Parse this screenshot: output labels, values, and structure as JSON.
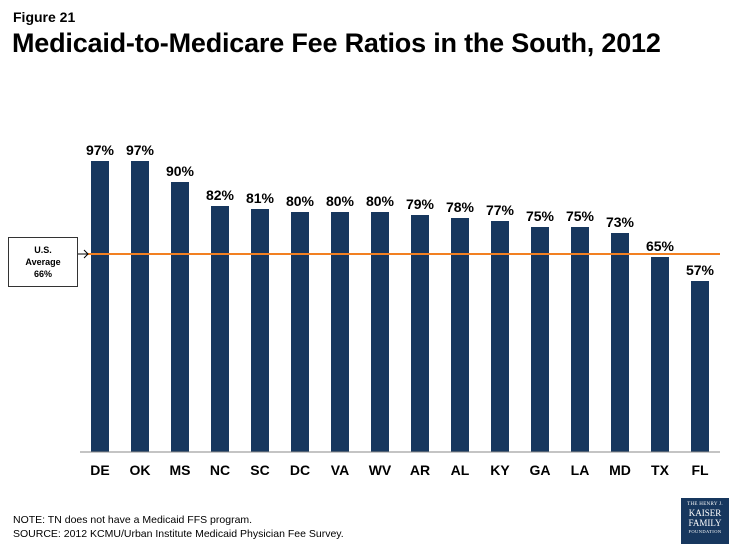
{
  "figure_label": "Figure 21",
  "title": "Medicaid-to-Medicare Fee Ratios in the South, 2012",
  "average_box": {
    "line1": "U.S.",
    "line2": "Average",
    "line3": "66%"
  },
  "notes": {
    "note": "NOTE: TN does not have a Medicaid FFS program.",
    "source": "SOURCE: 2012 KCMU/Urban Institute Medicaid Physician Fee Survey."
  },
  "logo": {
    "line1": "THE HENRY J.",
    "line2": "KAISER",
    "line3": "FAMILY",
    "line4": "FOUNDATION"
  },
  "colors": {
    "bar": "#17375e",
    "average_line": "#f28022"
  },
  "chart_data": {
    "type": "bar",
    "title": "Medicaid-to-Medicare Fee Ratios in the South, 2012",
    "xlabel": "",
    "ylabel": "",
    "ylim": [
      0,
      100
    ],
    "categories": [
      "DE",
      "OK",
      "MS",
      "NC",
      "SC",
      "DC",
      "VA",
      "WV",
      "AR",
      "AL",
      "KY",
      "GA",
      "LA",
      "MD",
      "TX",
      "FL"
    ],
    "values": [
      97,
      97,
      90,
      82,
      81,
      80,
      80,
      80,
      79,
      78,
      77,
      75,
      75,
      73,
      65,
      57
    ],
    "value_labels": [
      "97%",
      "97%",
      "90%",
      "82%",
      "81%",
      "80%",
      "80%",
      "80%",
      "79%",
      "78%",
      "77%",
      "75%",
      "75%",
      "73%",
      "65%",
      "57%"
    ],
    "reference_line": {
      "label": "U.S. Average 66%",
      "value": 66
    },
    "grid": false
  }
}
